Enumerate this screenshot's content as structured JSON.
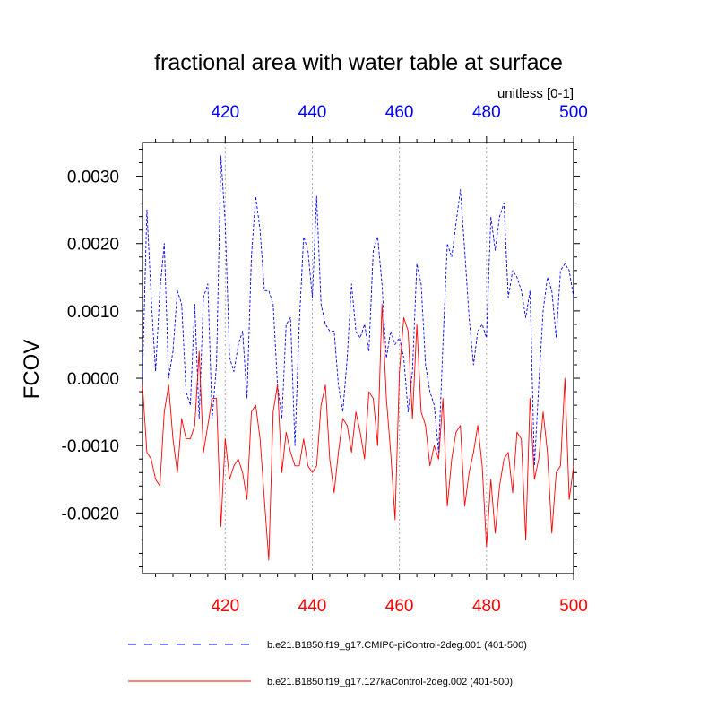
{
  "chart_data": {
    "type": "line",
    "title": "fractional area with water table at surface",
    "units_label": "unitless [0-1]",
    "ylabel": "FCOV",
    "xlabel": "",
    "xlim": [
      401,
      500
    ],
    "ylim": [
      -0.0029,
      0.0035
    ],
    "grid": "vertical dotted at x ticks",
    "x_ticks": [
      420,
      440,
      460,
      480,
      500
    ],
    "x_tick_labels": [
      "420",
      "440",
      "460",
      "480",
      "500"
    ],
    "y_ticks": [
      0.003,
      0.002,
      0.001,
      0.0,
      -0.001,
      -0.002
    ],
    "y_tick_labels": [
      "0.0030",
      "0.0020",
      "0.0010",
      "0.0000",
      "-0.0010",
      "-0.0020"
    ],
    "colors": {
      "top_axis": "#0000ff",
      "bottom_axis": "#ff0000",
      "series1": "#0000ff",
      "series2": "#ff0000"
    },
    "x": [
      401,
      402,
      403,
      404,
      405,
      406,
      407,
      408,
      409,
      410,
      411,
      412,
      413,
      414,
      415,
      416,
      417,
      418,
      419,
      420,
      421,
      422,
      423,
      424,
      425,
      426,
      427,
      428,
      429,
      430,
      431,
      432,
      433,
      434,
      435,
      436,
      437,
      438,
      439,
      440,
      441,
      442,
      443,
      444,
      445,
      446,
      447,
      448,
      449,
      450,
      451,
      452,
      453,
      454,
      455,
      456,
      457,
      458,
      459,
      460,
      461,
      462,
      463,
      464,
      465,
      466,
      467,
      468,
      469,
      470,
      471,
      472,
      473,
      474,
      475,
      476,
      477,
      478,
      479,
      480,
      481,
      482,
      483,
      484,
      485,
      486,
      487,
      488,
      489,
      490,
      491,
      492,
      493,
      494,
      495,
      496,
      497,
      498,
      499,
      500
    ],
    "series": [
      {
        "name": "b.e21.B1850.f19_g17.CMIP6-piControl-2deg.001 (401-500)",
        "style": "dashed",
        "values": [
          0.0,
          0.0025,
          0.0012,
          0.0001,
          0.0013,
          0.002,
          0.0,
          0.0004,
          0.0013,
          0.0011,
          -0.0002,
          -0.0004,
          0.0011,
          -0.0006,
          0.0012,
          0.0014,
          -0.0006,
          0.0002,
          0.0033,
          0.0023,
          0.0003,
          0.0001,
          0.0005,
          0.0007,
          -0.0003,
          0.0018,
          0.0027,
          0.0022,
          0.0013,
          0.0013,
          0.0011,
          -0.0001,
          -0.0006,
          0.0008,
          0.0009,
          -0.001,
          0.0008,
          0.0021,
          0.0019,
          0.0012,
          0.0027,
          0.0011,
          0.0008,
          0.0007,
          0.0007,
          -0.0001,
          -0.0005,
          0.0003,
          0.0014,
          0.0007,
          0.0006,
          0.0008,
          0.0004,
          0.0019,
          0.0021,
          0.0014,
          0.0003,
          0.0007,
          0.0005,
          0.0006,
          0.0003,
          -0.0005,
          0.0001,
          0.0017,
          0.0014,
          0.0002,
          -0.0002,
          -0.0004,
          -0.0011,
          0.0005,
          0.002,
          0.0018,
          0.0023,
          0.0028,
          0.0019,
          0.0009,
          0.0002,
          0.0007,
          0.0008,
          0.0006,
          0.0024,
          0.0019,
          0.0024,
          0.0026,
          0.0012,
          0.0016,
          0.0015,
          0.0013,
          0.0009,
          0.0013,
          -0.0013,
          -0.0001,
          0.001,
          0.0015,
          0.0013,
          0.0006,
          0.0016,
          0.0017,
          0.0016,
          0.0012
        ]
      },
      {
        "name": "b.e21.B1850.f19_g17.127kaControl-2deg.002 (401-500)",
        "style": "solid",
        "values": [
          -0.0001,
          -0.0011,
          -0.0012,
          -0.0015,
          -0.0016,
          -0.0005,
          -0.0001,
          -0.0009,
          -0.0014,
          -0.0006,
          -0.0009,
          -0.0009,
          -0.0007,
          0.0004,
          -0.0011,
          -0.0007,
          -0.0003,
          -0.0003,
          -0.0022,
          -0.0009,
          -0.0015,
          -0.0013,
          -0.0012,
          -0.0014,
          -0.0018,
          -0.0005,
          -0.0004,
          -0.0009,
          -0.0018,
          -0.0027,
          -0.0005,
          -0.0001,
          -0.0014,
          -0.0008,
          -0.0011,
          -0.0013,
          -0.0013,
          -0.0009,
          -0.0013,
          -0.0014,
          -0.0013,
          -0.0004,
          -0.0001,
          -0.0012,
          -0.0017,
          -0.0011,
          -0.0006,
          -0.0007,
          -0.0011,
          -0.0005,
          -0.0008,
          -0.0012,
          -0.0002,
          -0.0003,
          -0.001,
          0.0011,
          -0.0003,
          -0.0011,
          -0.0021,
          0.0001,
          0.0009,
          0.0007,
          -0.0006,
          0.0008,
          -0.0005,
          -0.0007,
          -0.0013,
          -0.001,
          -0.0012,
          -0.0003,
          -0.0019,
          -0.0012,
          -0.0008,
          -0.0007,
          -0.0019,
          -0.0014,
          -0.0011,
          -0.0007,
          -0.0013,
          -0.0025,
          -0.0015,
          -0.0023,
          -0.0016,
          -0.0012,
          -0.0011,
          -0.0017,
          -0.0008,
          -0.0009,
          -0.0024,
          -0.0003,
          -0.0015,
          -0.0012,
          -0.0005,
          -0.0011,
          -0.0023,
          -0.0014,
          -0.0013,
          0.0,
          -0.0018,
          -0.0013
        ]
      }
    ]
  }
}
